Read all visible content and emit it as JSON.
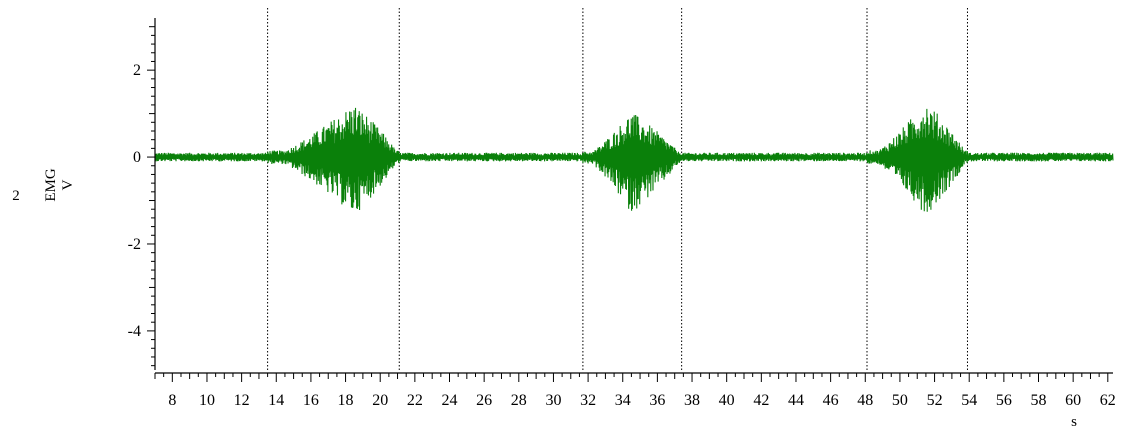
{
  "chart_data": {
    "type": "line",
    "channel_number": "2",
    "ylabel": "EMG",
    "yunit": "V",
    "xunit": "s",
    "xlim": [
      7,
      62.3
    ],
    "ylim": [
      -4.9,
      3.2
    ],
    "x_ticks": [
      8,
      10,
      12,
      14,
      16,
      18,
      20,
      22,
      24,
      26,
      28,
      30,
      32,
      34,
      36,
      38,
      40,
      42,
      44,
      46,
      48,
      50,
      52,
      54,
      56,
      58,
      60,
      62
    ],
    "x_tick_labels": [
      "8",
      "10",
      "12",
      "14",
      "16",
      "18",
      "20",
      "22",
      "24",
      "26",
      "28",
      "30",
      "32",
      "34",
      "36",
      "38",
      "40",
      "42",
      "44",
      "46",
      "48",
      "50",
      "52",
      "54",
      "56",
      "58",
      "60",
      "62"
    ],
    "y_ticks": [
      2,
      0,
      -2,
      -4
    ],
    "y_tick_labels": [
      "2",
      "0",
      "-2",
      "-4"
    ],
    "event_markers_x": [
      13.5,
      21.1,
      31.7,
      37.4,
      48.1,
      53.9
    ],
    "series": [
      {
        "color": "#0a800a",
        "baseline_noise_amplitude": 0.1,
        "bursts": [
          {
            "start": 13.5,
            "end": 21.1,
            "peak_x": 18.5,
            "max": 1.25,
            "min": -1.35
          },
          {
            "start": 31.7,
            "end": 37.4,
            "peak_x": 34.5,
            "max": 1.05,
            "min": -1.3
          },
          {
            "start": 48.1,
            "end": 53.9,
            "peak_x": 51.5,
            "max": 1.3,
            "min": -1.35
          }
        ]
      }
    ],
    "grid": false
  }
}
